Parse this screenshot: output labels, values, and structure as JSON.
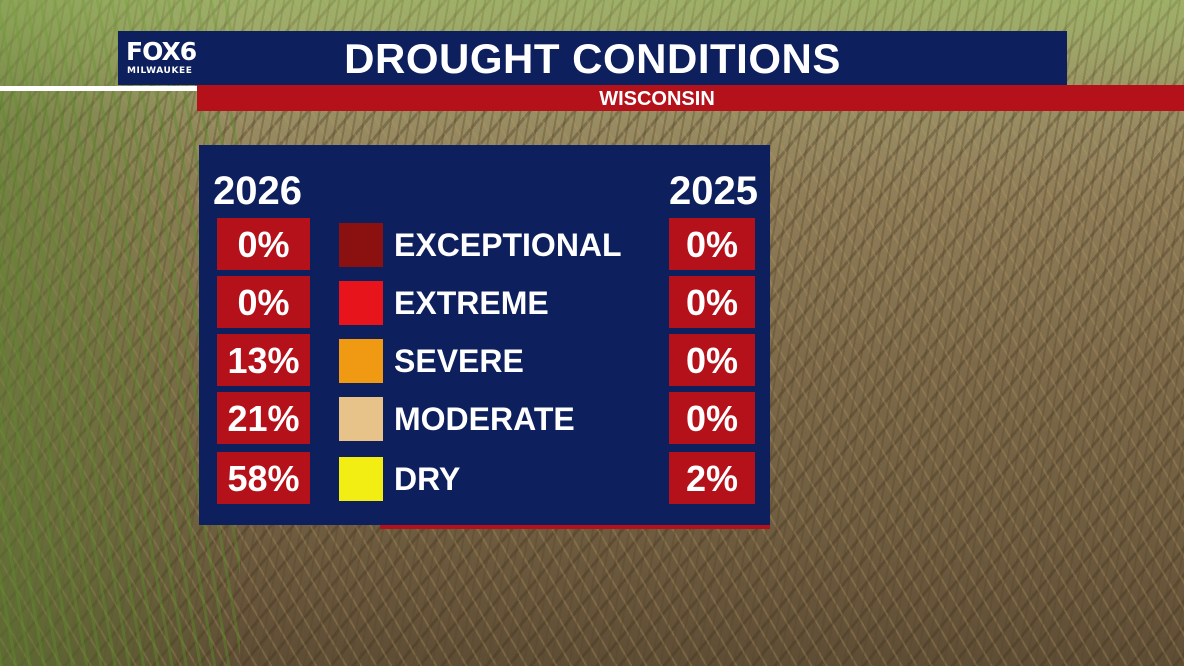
{
  "header": {
    "logo_main": "FOX6",
    "logo_sub": "MILWAUKEE",
    "title": "DROUGHT CONDITIONS",
    "subtitle": "WISCONSIN"
  },
  "table": {
    "year_left": "2026",
    "year_right": "2025",
    "rows": [
      {
        "category": "EXCEPTIONAL",
        "pct_2026": "0%",
        "pct_2025": "0%",
        "color": "#8b1010"
      },
      {
        "category": "EXTREME",
        "pct_2026": "0%",
        "pct_2025": "0%",
        "color": "#e8141b"
      },
      {
        "category": "SEVERE",
        "pct_2026": "13%",
        "pct_2025": "0%",
        "color": "#f09a14"
      },
      {
        "category": "MODERATE",
        "pct_2026": "21%",
        "pct_2025": "0%",
        "color": "#e8c389"
      },
      {
        "category": "DRY",
        "pct_2026": "58%",
        "pct_2025": "2%",
        "color": "#f2ee14"
      }
    ]
  },
  "colors": {
    "navy": "#0d1f5c",
    "red": "#b4111a"
  }
}
